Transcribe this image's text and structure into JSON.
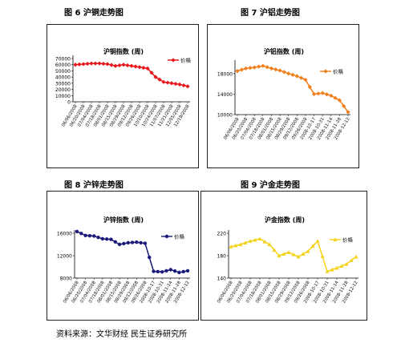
{
  "figures": [
    {
      "title": "图 6  沪铜走势图"
    },
    {
      "title": "图 7  沪铝走势图"
    },
    {
      "title": "图 8 沪锌走势图"
    },
    {
      "title": "图 9  沪金走势图"
    }
  ],
  "source": "资料来源：文华财经  民生证券研究所",
  "chart_data": [
    {
      "type": "line",
      "title": "沪铜指数 (周)",
      "legend": "价格",
      "legend_position": "right",
      "color": "#e8141b",
      "marker": "diamond",
      "ylim": [
        0,
        70000
      ],
      "yticks": [
        0,
        10000,
        20000,
        30000,
        40000,
        50000,
        60000,
        70000
      ],
      "x": [
        "06/06/2008",
        "06/20/2008",
        "07/04/2008",
        "07/18/2008",
        "08/01/2008",
        "08/15/2008",
        "08/29/2008",
        "09/12/2008",
        "09/26/2008",
        "10/10/2008",
        "10/24/2008",
        "11/07/2008",
        "11/21/2008",
        "12/05/2008",
        "12/19/2008"
      ],
      "xticks": [
        "06/06/2008",
        "06/20/2008",
        "07/04/2008",
        "07/18/2008",
        "08/01/2008",
        "08/15/2008",
        "08/29/2008",
        "09/12/2008",
        "09/26/2008",
        "10/10/2008",
        "10/24/2008",
        "11/07/2008",
        "11/21/2008",
        "12/05/2008",
        "12/19/2008"
      ],
      "values": [
        60000,
        61000,
        62000,
        62000,
        61000,
        58000,
        60000,
        58000,
        56000,
        54000,
        40000,
        32000,
        30000,
        28000,
        25000
      ]
    },
    {
      "type": "line",
      "title": "沪铝指数 (周)",
      "legend": "价格",
      "legend_position": "right",
      "color": "#f07f1a",
      "marker": "diamond",
      "ylim": [
        10000,
        20000
      ],
      "yticks": [
        10000,
        14000,
        18000
      ],
      "x": [
        "06/06/2008",
        "06/20/2008",
        "07/04/2008",
        "07/18/2008",
        "08/01/2008",
        "08/15/2008",
        "08/29/2008",
        "09/12/2008",
        "09/26/2008",
        "2008-10-17",
        "2008-10-31",
        "2008-11-14",
        "2008-11-28",
        "2008-12-12"
      ],
      "xticks": [
        "06/06/2008",
        "06/20/2008",
        "07/04/2008",
        "07/18/2008",
        "08/01/2008",
        "08/15/2008",
        "08/29/2008",
        "09/12/2008",
        "09/26/2008",
        "2008-10-17",
        "2008-10-31",
        "2008-11-14",
        "2008-11-28",
        "2008-12-12"
      ],
      "values": [
        18500,
        19000,
        19200,
        19500,
        19000,
        18600,
        18000,
        17500,
        16800,
        14000,
        14200,
        13700,
        12800,
        10500
      ]
    },
    {
      "type": "line",
      "title": "沪锌指数 (周)",
      "legend": "价格",
      "legend_position": "right",
      "color": "#1a1a7a",
      "marker": "circle",
      "ylim": [
        8000,
        16000
      ],
      "yticks": [
        8000,
        12000,
        16000
      ],
      "x": [
        "06/06/2008",
        "06/20/2008",
        "07/04/2008",
        "07/18/2008",
        "08/01/2008",
        "08/15/2008",
        "08/29/2008",
        "09/12/2008",
        "09/26/2008",
        "2008-10-17",
        "2008-10-31",
        "2008-11-14",
        "2008-11-28",
        "2008-12-12"
      ],
      "xticks": [
        "06/06/2008",
        "06/20/2008",
        "07/04/2008",
        "07/18/2008",
        "08/01/2008",
        "08/15/2008",
        "08/29/2008",
        "09/12/2008",
        "09/26/2008",
        "2008-10-17",
        "2008-10-31",
        "2008-11-14",
        "2008-11-28",
        "2008-12-12"
      ],
      "values": [
        16300,
        15600,
        15500,
        15000,
        14900,
        14000,
        14300,
        14400,
        14200,
        9200,
        9100,
        9500,
        9000,
        9300
      ]
    },
    {
      "type": "line",
      "title": "沪金指数 (周)",
      "legend": "价格",
      "legend_position": "right",
      "color": "#f5d21a",
      "marker": "triangle",
      "ylim": [
        140,
        220
      ],
      "yticks": [
        140,
        180,
        220
      ],
      "x": [
        "06/06/2008",
        "06/20/2008",
        "07/04/2008",
        "07/18/2008",
        "08/01/2008",
        "08/15/2008",
        "08/29/2008",
        "09/12/2008",
        "09/26/2008",
        "2008-10-17",
        "2008-10-31",
        "2008-11-14",
        "2008-11-28",
        "2008-12-12"
      ],
      "xticks": [
        "06/06/2008",
        "06/20/2008",
        "07/04/2008",
        "07/18/2008",
        "08/01/2008",
        "08/15/2008",
        "08/29/2008",
        "09/12/2008",
        "09/26/2008",
        "2008-10-17",
        "2008-10-31",
        "2008-11-14",
        "2008-11-28",
        "2008-12-12"
      ],
      "values": [
        196,
        200,
        206,
        210,
        200,
        180,
        186,
        178,
        188,
        206,
        152,
        158,
        165,
        178
      ]
    }
  ]
}
